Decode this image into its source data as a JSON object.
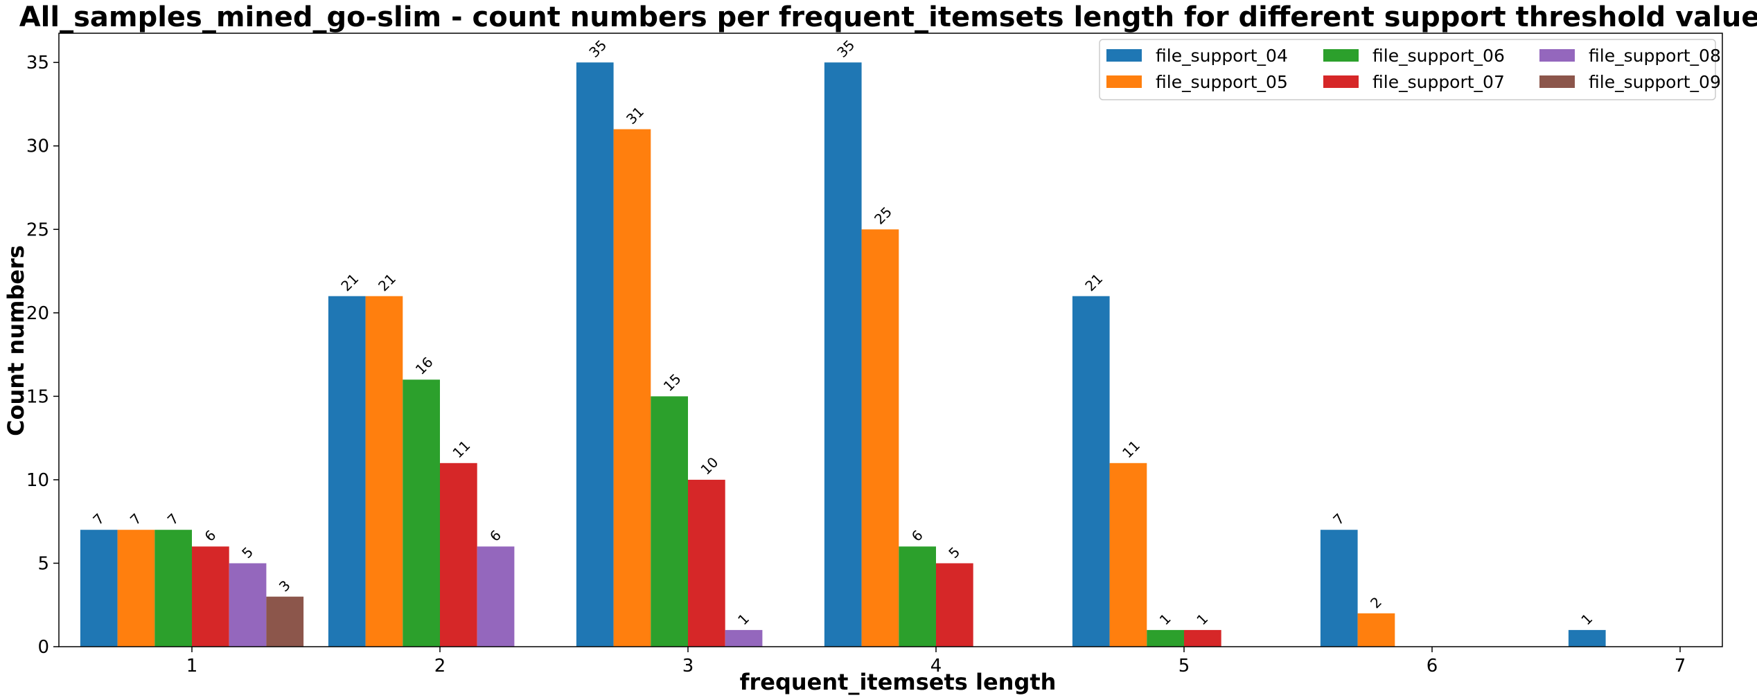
{
  "chart_data": {
    "type": "bar",
    "title": "All_samples_mined_go-slim - count numbers per frequent_itemsets length for different support threshold values",
    "xlabel": "frequent_itemsets length",
    "ylabel": "Count numbers",
    "categories": [
      "1",
      "2",
      "3",
      "4",
      "5",
      "6",
      "7"
    ],
    "ylim": [
      0,
      36.75
    ],
    "yticks": [
      0,
      5,
      10,
      15,
      20,
      25,
      30,
      35
    ],
    "legend_position": "top-right",
    "grid": false,
    "series": [
      {
        "name": "file_support_04",
        "color": "#1f77b4",
        "values": [
          7,
          21,
          35,
          35,
          21,
          7,
          1
        ]
      },
      {
        "name": "file_support_05",
        "color": "#ff7f0e",
        "values": [
          7,
          21,
          31,
          25,
          11,
          2,
          null
        ]
      },
      {
        "name": "file_support_06",
        "color": "#2ca02c",
        "values": [
          7,
          16,
          15,
          6,
          1,
          null,
          null
        ]
      },
      {
        "name": "file_support_07",
        "color": "#d62728",
        "values": [
          6,
          11,
          10,
          5,
          1,
          null,
          null
        ]
      },
      {
        "name": "file_support_08",
        "color": "#9467bd",
        "values": [
          5,
          6,
          1,
          null,
          null,
          null,
          null
        ]
      },
      {
        "name": "file_support_09",
        "color": "#8c564b",
        "values": [
          3,
          null,
          null,
          null,
          null,
          null,
          null
        ]
      }
    ]
  }
}
